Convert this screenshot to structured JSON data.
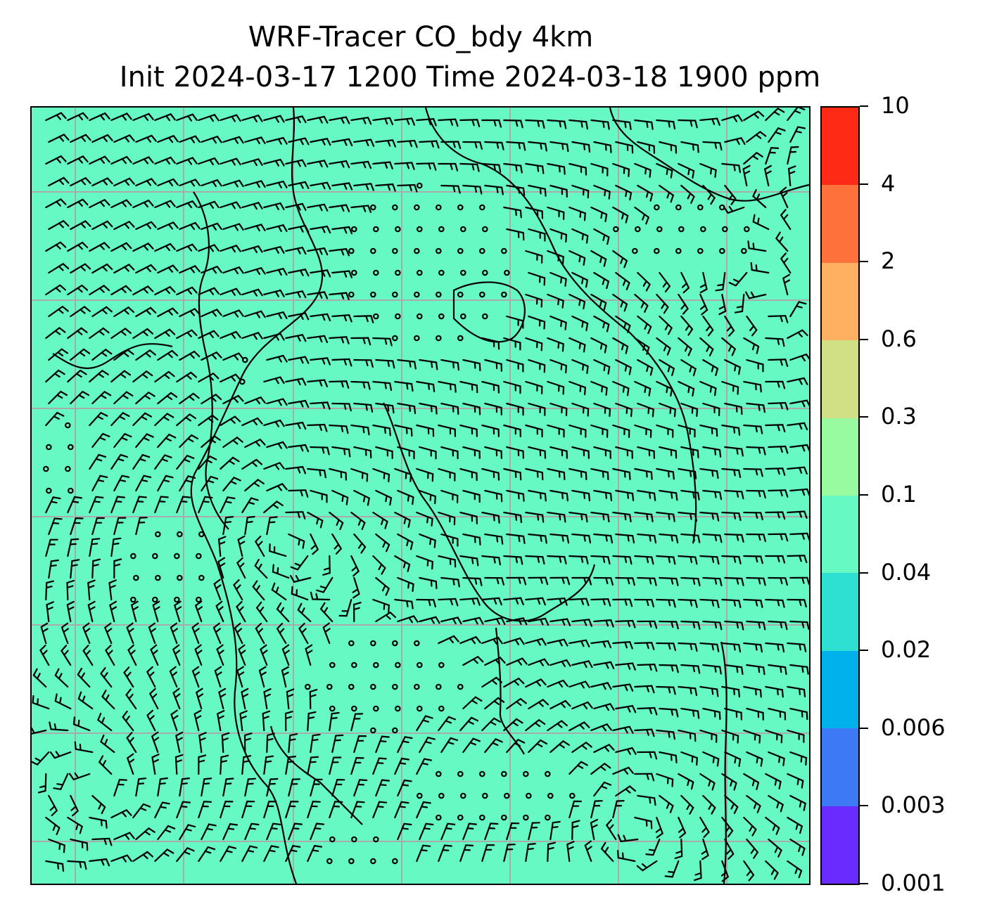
{
  "title": {
    "line1": "WRF-Tracer CO_bdy 4km",
    "line2": "Init 2024-03-17 1200 Time 2024-03-18 1900 ppm"
  },
  "map": {
    "variable": "CO_bdy",
    "fill_color": "#66f9c4",
    "gridline_color": "#aaaaaa",
    "coastline_color": "#000000",
    "wind_barbs": true
  },
  "colorbar": {
    "levels": [
      "0.001",
      "0.003",
      "0.006",
      "0.02",
      "0.04",
      "0.1",
      "0.3",
      "0.6",
      "2",
      "4",
      "10"
    ],
    "colors": [
      "#6a2bff",
      "#3b79f5",
      "#00b1eb",
      "#2ee0d2",
      "#66f9c4",
      "#98fb9f",
      "#d1e084",
      "#ffb060",
      "#ff713a",
      "#ff2a16"
    ]
  }
}
